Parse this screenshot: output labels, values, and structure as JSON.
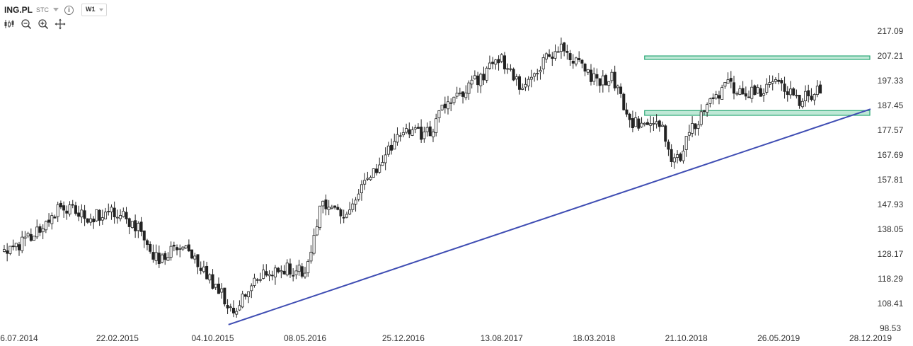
{
  "toolbar": {
    "symbol": "ING.PL",
    "period": "STC",
    "timeframe": "W1",
    "icons": [
      "candlestick-icon",
      "zoom-out-icon",
      "zoom-in-icon",
      "crosshair-icon"
    ]
  },
  "colors": {
    "candle": "#222222",
    "trendline": "#3f4db3",
    "zone_stroke": "#2aa876",
    "zone_fill": "#bfe8d6"
  },
  "chart_data": {
    "type": "candlestick",
    "title": "",
    "y_ticks": [
      "217.09",
      "207.21",
      "197.33",
      "187.45",
      "177.57",
      "167.69",
      "157.81",
      "147.93",
      "138.05",
      "128.17",
      "118.29",
      "108.41",
      "98.53"
    ],
    "x_ticks": [
      "6.07.2014",
      "22.02.2015",
      "04.10.2015",
      "08.05.2016",
      "25.12.2016",
      "13.08.2017",
      "18.03.2018",
      "21.10.2018",
      "26.05.2019",
      "28.12.2019"
    ],
    "ylim": [
      98.53,
      221
    ],
    "grid": false,
    "price_path": [
      [
        "2014-06-01",
        129
      ],
      [
        "2014-08-01",
        135
      ],
      [
        "2014-10-15",
        147
      ],
      [
        "2014-12-15",
        143
      ],
      [
        "2015-02-22",
        145
      ],
      [
        "2015-04-15",
        138
      ],
      [
        "2015-06-01",
        124
      ],
      [
        "2015-07-15",
        132
      ],
      [
        "2015-09-01",
        124
      ],
      [
        "2015-10-20",
        113
      ],
      [
        "2015-11-25",
        105
      ],
      [
        "2016-01-05",
        118
      ],
      [
        "2016-03-15",
        122
      ],
      [
        "2016-05-08",
        122
      ],
      [
        "2016-06-15",
        148
      ],
      [
        "2016-08-01",
        143
      ],
      [
        "2016-10-01",
        158
      ],
      [
        "2016-12-25",
        177
      ],
      [
        "2017-02-15",
        175
      ],
      [
        "2017-04-15",
        190
      ],
      [
        "2017-06-01",
        196
      ],
      [
        "2017-08-13",
        206
      ],
      [
        "2017-09-25",
        194
      ],
      [
        "2017-11-15",
        204
      ],
      [
        "2018-01-01",
        213
      ],
      [
        "2018-02-15",
        202
      ],
      [
        "2018-03-18",
        198
      ],
      [
        "2018-05-01",
        198
      ],
      [
        "2018-06-15",
        180
      ],
      [
        "2018-07-15",
        182
      ],
      [
        "2018-08-25",
        178
      ],
      [
        "2018-09-25",
        163
      ],
      [
        "2018-10-21",
        174
      ],
      [
        "2018-12-15",
        188
      ],
      [
        "2019-01-20",
        196
      ],
      [
        "2019-03-01",
        193
      ],
      [
        "2019-04-10",
        192
      ],
      [
        "2019-05-26",
        199
      ],
      [
        "2019-07-10",
        188
      ],
      [
        "2019-08-15",
        193
      ],
      [
        "2019-09-20",
        195
      ]
    ],
    "trendline": [
      [
        "2015-11-10",
        100
      ],
      [
        "2019-12-28",
        186
      ]
    ],
    "resistance_zone": {
      "from": "2018-07-15",
      "to": "2019-12-28",
      "low": 205.8,
      "high": 207.2
    },
    "support_zone": {
      "from": "2018-07-15",
      "to": "2019-12-28",
      "low": 183.5,
      "high": 185.4
    }
  }
}
